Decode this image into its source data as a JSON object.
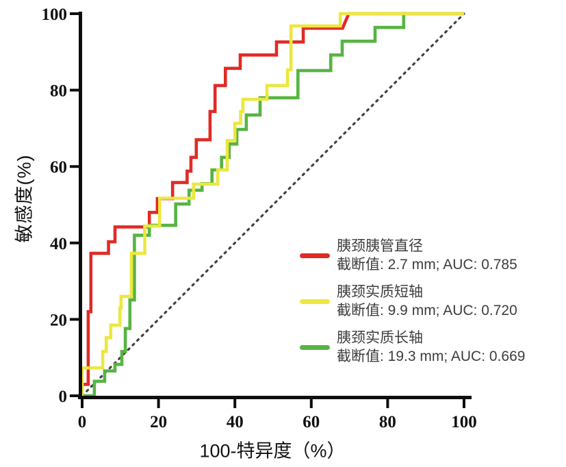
{
  "chart_data": {
    "type": "line",
    "subtype": "roc-step-curves",
    "title": "",
    "xlabel": "100-特异度（%）",
    "ylabel": "敏感度(%)",
    "xlim": [
      0,
      100
    ],
    "ylim": [
      0,
      100
    ],
    "x_ticks": [
      0,
      20,
      40,
      60,
      80,
      100
    ],
    "y_ticks": [
      0,
      20,
      40,
      60,
      80,
      100
    ],
    "grid": false,
    "legend_position": "inside-right-middle",
    "axis_color": "#0e0e0e",
    "reference_line": {
      "name": "chance-diagonal",
      "style": "dotted",
      "from": [
        0,
        0
      ],
      "to": [
        100,
        100
      ],
      "color": "#46403c"
    },
    "series": [
      {
        "name": "胰颈胰管直径",
        "caption": "截断值: 2.7 mm; AUC: 0.785",
        "cutoff_mm": 2.7,
        "auc": 0.785,
        "color": "#e02b27",
        "points": [
          [
            0,
            0
          ],
          [
            0,
            3
          ],
          [
            1.6,
            3
          ],
          [
            1.6,
            22
          ],
          [
            2.3,
            22
          ],
          [
            2.3,
            37.3
          ],
          [
            6.9,
            37.3
          ],
          [
            6.9,
            40.3
          ],
          [
            8.6,
            40.3
          ],
          [
            8.6,
            44.2
          ],
          [
            17.6,
            44.2
          ],
          [
            17.6,
            48
          ],
          [
            19.7,
            48
          ],
          [
            19.7,
            51.6
          ],
          [
            23.7,
            51.6
          ],
          [
            23.7,
            55.8
          ],
          [
            27.5,
            55.8
          ],
          [
            27.5,
            58.8
          ],
          [
            28.5,
            58.8
          ],
          [
            28.5,
            62.4
          ],
          [
            29.9,
            62.4
          ],
          [
            29.9,
            67
          ],
          [
            33.5,
            67
          ],
          [
            33.5,
            74.4
          ],
          [
            34.8,
            74.4
          ],
          [
            34.8,
            81.2
          ],
          [
            37.5,
            81.2
          ],
          [
            37.5,
            85.7
          ],
          [
            41.4,
            85.7
          ],
          [
            41.4,
            89.2
          ],
          [
            50.9,
            89.2
          ],
          [
            50.9,
            92.6
          ],
          [
            57.9,
            92.6
          ],
          [
            57.9,
            96.2
          ],
          [
            68.2,
            96.2
          ],
          [
            69.8,
            100
          ],
          [
            100,
            100
          ]
        ]
      },
      {
        "name": "胰颈实质短轴",
        "caption": "截断值: 9.9 mm; AUC: 0.720",
        "cutoff_mm": 9.9,
        "auc": 0.72,
        "color": "#ece73f",
        "points": [
          [
            0,
            0
          ],
          [
            0,
            7.3
          ],
          [
            5.4,
            7.3
          ],
          [
            5.4,
            11.6
          ],
          [
            6.3,
            11.6
          ],
          [
            6.3,
            15.2
          ],
          [
            7.5,
            15.2
          ],
          [
            7.5,
            18.5
          ],
          [
            9.9,
            18.5
          ],
          [
            9.9,
            23
          ],
          [
            10.2,
            23
          ],
          [
            10.2,
            26
          ],
          [
            12.9,
            26
          ],
          [
            12.9,
            37.3
          ],
          [
            16.4,
            37.3
          ],
          [
            16.4,
            44.4
          ],
          [
            20.3,
            44.4
          ],
          [
            20.3,
            51.7
          ],
          [
            29.2,
            51.7
          ],
          [
            29.2,
            55.4
          ],
          [
            35.5,
            55.4
          ],
          [
            35.5,
            59.1
          ],
          [
            38,
            59.1
          ],
          [
            38,
            66.8
          ],
          [
            40,
            66.8
          ],
          [
            40,
            71.3
          ],
          [
            41.5,
            71.3
          ],
          [
            41.5,
            74.4
          ],
          [
            42.1,
            74.4
          ],
          [
            42.1,
            77.6
          ],
          [
            48.4,
            77.6
          ],
          [
            48.4,
            81.2
          ],
          [
            53.8,
            81.2
          ],
          [
            53.8,
            85.3
          ],
          [
            54.7,
            85.3
          ],
          [
            54.7,
            96.8
          ],
          [
            67.6,
            96.8
          ],
          [
            67.6,
            100
          ],
          [
            100,
            100
          ]
        ]
      },
      {
        "name": "胰颈实质长轴",
        "caption": "截断值: 19.3 mm; AUC: 0.669",
        "cutoff_mm": 19.3,
        "auc": 0.669,
        "color": "#57b442",
        "points": [
          [
            0,
            0
          ],
          [
            3.2,
            0
          ],
          [
            3.2,
            3.8
          ],
          [
            5.9,
            3.8
          ],
          [
            5.9,
            6.5
          ],
          [
            8.6,
            6.5
          ],
          [
            8.6,
            8.2
          ],
          [
            10.4,
            8.2
          ],
          [
            10.4,
            11.6
          ],
          [
            11.3,
            11.6
          ],
          [
            11.3,
            17.6
          ],
          [
            12.5,
            17.6
          ],
          [
            12.5,
            25.1
          ],
          [
            13.7,
            25.1
          ],
          [
            13.7,
            42
          ],
          [
            17.6,
            42
          ],
          [
            17.6,
            44.6
          ],
          [
            24.5,
            44.6
          ],
          [
            24.5,
            50.2
          ],
          [
            28,
            50.2
          ],
          [
            28,
            53.8
          ],
          [
            31.4,
            53.8
          ],
          [
            31.4,
            55.5
          ],
          [
            34,
            55.5
          ],
          [
            34,
            59.1
          ],
          [
            36.5,
            59.1
          ],
          [
            36.5,
            62.4
          ],
          [
            38.5,
            62.4
          ],
          [
            38.5,
            65.9
          ],
          [
            40.5,
            65.9
          ],
          [
            40.5,
            69.7
          ],
          [
            43,
            69.7
          ],
          [
            43,
            73.5
          ],
          [
            46.6,
            73.5
          ],
          [
            46.6,
            78
          ],
          [
            56.5,
            78
          ],
          [
            56.5,
            85.1
          ],
          [
            65.1,
            85.1
          ],
          [
            65.1,
            89.2
          ],
          [
            68.1,
            89.2
          ],
          [
            68.1,
            92.8
          ],
          [
            76.7,
            92.8
          ],
          [
            76.7,
            96.4
          ],
          [
            84.2,
            96.4
          ],
          [
            84.2,
            100
          ],
          [
            100,
            100
          ]
        ]
      }
    ]
  }
}
